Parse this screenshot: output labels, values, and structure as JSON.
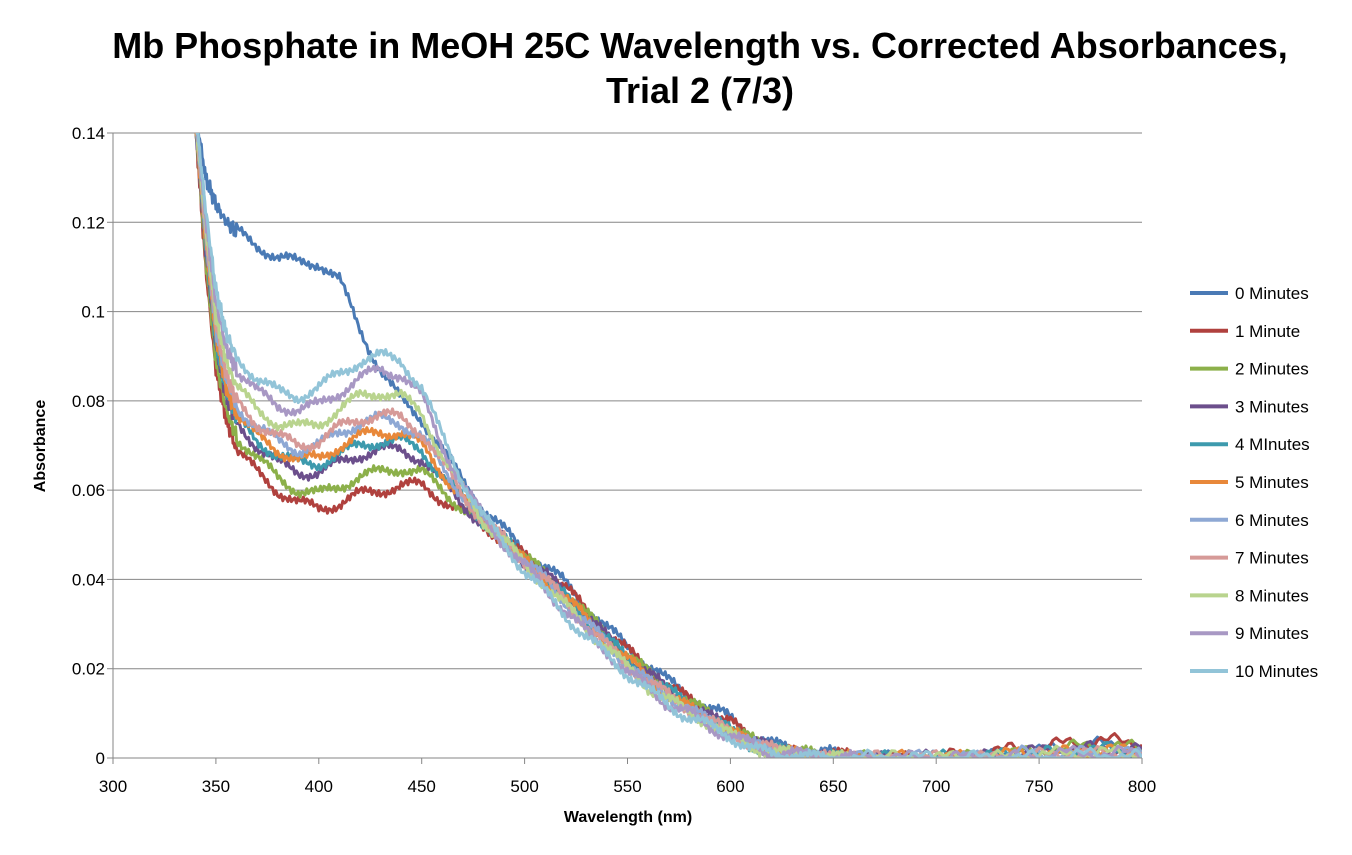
{
  "chart_data": {
    "type": "line",
    "title": [
      "Mb Phosphate in MeOH 25C Wavelength vs. Corrected Absorbances,",
      "Trial 2 (7/3)"
    ],
    "xlabel": "Wavelength (nm)",
    "ylabel": "Absorbance",
    "xlim": [
      300,
      800
    ],
    "ylim": [
      0,
      0.14
    ],
    "xticks": [
      300,
      350,
      400,
      450,
      500,
      550,
      600,
      650,
      700,
      750,
      800
    ],
    "yticks": [
      0,
      0.02,
      0.04,
      0.06,
      0.08,
      0.1,
      0.12,
      0.14
    ],
    "ytick_labels": [
      "0",
      "0.02",
      "0.04",
      "0.06",
      "0.08",
      "0.1",
      "0.12",
      "0.14"
    ],
    "grid": "horizontal",
    "legend_position": "right",
    "x": [
      340,
      345,
      350,
      355,
      360,
      370,
      380,
      390,
      400,
      410,
      420,
      430,
      440,
      450,
      460,
      470,
      480,
      490,
      500,
      510,
      520,
      530,
      540,
      550,
      560,
      570,
      580,
      590,
      600,
      610,
      620,
      630,
      640,
      650,
      660,
      680,
      700,
      720,
      740,
      760,
      780,
      800
    ],
    "series": [
      {
        "name": "0 Minutes",
        "color": "#4a7ab5",
        "values": [
          0.145,
          0.13,
          0.124,
          0.12,
          0.118,
          0.115,
          0.112,
          0.111,
          0.111,
          0.107,
          0.096,
          0.087,
          0.08,
          0.076,
          0.069,
          0.062,
          0.056,
          0.051,
          0.046,
          0.043,
          0.039,
          0.034,
          0.029,
          0.025,
          0.021,
          0.017,
          0.014,
          0.011,
          0.009,
          0.005,
          0.003,
          0.002,
          0.001,
          0.001,
          0.0,
          0.0,
          0.0,
          0.0,
          0.001,
          0.002,
          0.003,
          0.002
        ]
      },
      {
        "name": "1 Minute",
        "color": "#b0413e",
        "values": [
          0.142,
          0.11,
          0.087,
          0.076,
          0.069,
          0.064,
          0.06,
          0.057,
          0.056,
          0.057,
          0.059,
          0.06,
          0.061,
          0.061,
          0.058,
          0.055,
          0.052,
          0.049,
          0.045,
          0.042,
          0.038,
          0.033,
          0.028,
          0.024,
          0.02,
          0.016,
          0.013,
          0.01,
          0.008,
          0.004,
          0.002,
          0.001,
          0.001,
          0.001,
          0.0,
          0.0,
          0.0,
          0.001,
          0.002,
          0.003,
          0.004,
          0.003
        ]
      },
      {
        "name": "2 Minutes",
        "color": "#8cb04a",
        "values": [
          0.143,
          0.112,
          0.089,
          0.078,
          0.072,
          0.067,
          0.063,
          0.06,
          0.059,
          0.061,
          0.063,
          0.064,
          0.065,
          0.064,
          0.06,
          0.056,
          0.052,
          0.049,
          0.045,
          0.041,
          0.037,
          0.032,
          0.028,
          0.023,
          0.019,
          0.016,
          0.012,
          0.01,
          0.007,
          0.004,
          0.002,
          0.001,
          0.001,
          0.0,
          0.0,
          0.0,
          0.0,
          0.0,
          0.001,
          0.002,
          0.003,
          0.002
        ]
      },
      {
        "name": "3 Minutes",
        "color": "#6c4f8c",
        "values": [
          0.143,
          0.114,
          0.092,
          0.081,
          0.075,
          0.07,
          0.066,
          0.064,
          0.064,
          0.066,
          0.068,
          0.069,
          0.069,
          0.067,
          0.062,
          0.057,
          0.052,
          0.049,
          0.044,
          0.041,
          0.037,
          0.032,
          0.027,
          0.023,
          0.019,
          0.015,
          0.012,
          0.009,
          0.007,
          0.004,
          0.002,
          0.001,
          0.0,
          0.0,
          0.0,
          0.0,
          0.0,
          0.0,
          0.001,
          0.002,
          0.002,
          0.002
        ]
      },
      {
        "name": "4 MInutes",
        "color": "#3d9aad",
        "values": [
          0.143,
          0.115,
          0.093,
          0.082,
          0.076,
          0.071,
          0.068,
          0.066,
          0.066,
          0.068,
          0.07,
          0.071,
          0.071,
          0.069,
          0.063,
          0.058,
          0.053,
          0.049,
          0.044,
          0.04,
          0.036,
          0.031,
          0.027,
          0.022,
          0.018,
          0.015,
          0.012,
          0.009,
          0.006,
          0.003,
          0.002,
          0.001,
          0.0,
          0.0,
          0.0,
          0.0,
          0.0,
          0.0,
          0.001,
          0.001,
          0.002,
          0.001
        ]
      },
      {
        "name": "5 Minutes",
        "color": "#e8883a",
        "values": [
          0.143,
          0.116,
          0.094,
          0.083,
          0.077,
          0.072,
          0.069,
          0.067,
          0.067,
          0.07,
          0.072,
          0.073,
          0.073,
          0.07,
          0.064,
          0.058,
          0.053,
          0.049,
          0.044,
          0.04,
          0.036,
          0.031,
          0.026,
          0.022,
          0.018,
          0.014,
          0.011,
          0.009,
          0.006,
          0.003,
          0.002,
          0.001,
          0.0,
          0.0,
          0.0,
          0.0,
          0.0,
          0.0,
          0.001,
          0.001,
          0.002,
          0.001
        ]
      },
      {
        "name": "6 Minutes",
        "color": "#8ea8d4",
        "values": [
          0.144,
          0.117,
          0.096,
          0.085,
          0.079,
          0.074,
          0.071,
          0.069,
          0.07,
          0.073,
          0.075,
          0.076,
          0.075,
          0.072,
          0.065,
          0.059,
          0.053,
          0.049,
          0.044,
          0.04,
          0.035,
          0.03,
          0.026,
          0.021,
          0.017,
          0.014,
          0.011,
          0.008,
          0.006,
          0.003,
          0.002,
          0.001,
          0.0,
          0.0,
          0.0,
          0.0,
          0.0,
          0.0,
          0.001,
          0.001,
          0.001,
          0.001
        ]
      },
      {
        "name": "7 Minutes",
        "color": "#d69a98",
        "values": [
          0.144,
          0.118,
          0.097,
          0.086,
          0.08,
          0.075,
          0.072,
          0.07,
          0.071,
          0.074,
          0.076,
          0.077,
          0.076,
          0.073,
          0.066,
          0.059,
          0.053,
          0.049,
          0.044,
          0.04,
          0.035,
          0.03,
          0.025,
          0.021,
          0.017,
          0.014,
          0.011,
          0.008,
          0.006,
          0.003,
          0.002,
          0.001,
          0.0,
          0.0,
          0.0,
          0.0,
          0.0,
          0.0,
          0.0,
          0.001,
          0.001,
          0.001
        ]
      },
      {
        "name": "8 Minutes",
        "color": "#b9d48e",
        "values": [
          0.144,
          0.119,
          0.099,
          0.089,
          0.083,
          0.078,
          0.075,
          0.074,
          0.075,
          0.078,
          0.081,
          0.082,
          0.081,
          0.077,
          0.068,
          0.06,
          0.053,
          0.049,
          0.043,
          0.039,
          0.034,
          0.029,
          0.025,
          0.02,
          0.016,
          0.013,
          0.01,
          0.008,
          0.005,
          0.003,
          0.001,
          0.001,
          0.0,
          0.0,
          0.0,
          0.0,
          0.0,
          0.0,
          0.0,
          0.001,
          0.001,
          0.001
        ]
      },
      {
        "name": "9 Minutes",
        "color": "#a898c4",
        "values": [
          0.145,
          0.121,
          0.102,
          0.092,
          0.087,
          0.082,
          0.079,
          0.078,
          0.079,
          0.082,
          0.085,
          0.087,
          0.086,
          0.081,
          0.07,
          0.061,
          0.054,
          0.048,
          0.043,
          0.038,
          0.033,
          0.028,
          0.024,
          0.019,
          0.016,
          0.012,
          0.01,
          0.007,
          0.005,
          0.003,
          0.001,
          0.001,
          0.0,
          0.0,
          0.0,
          0.0,
          0.0,
          0.0,
          0.0,
          0.001,
          0.001,
          0.001
        ]
      },
      {
        "name": "10 Minutes",
        "color": "#92c4d8",
        "values": [
          0.145,
          0.123,
          0.105,
          0.095,
          0.09,
          0.085,
          0.082,
          0.081,
          0.083,
          0.086,
          0.089,
          0.09,
          0.089,
          0.083,
          0.072,
          0.062,
          0.054,
          0.048,
          0.042,
          0.037,
          0.032,
          0.027,
          0.023,
          0.019,
          0.015,
          0.012,
          0.009,
          0.007,
          0.005,
          0.002,
          0.001,
          0.001,
          0.0,
          0.0,
          0.0,
          0.0,
          0.0,
          0.0,
          0.0,
          0.0,
          0.001,
          0.0
        ]
      }
    ]
  }
}
